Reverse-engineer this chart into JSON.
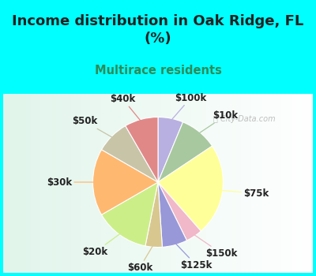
{
  "title": "Income distribution in Oak Ridge, FL\n(%)",
  "subtitle": "Multirace residents",
  "title_color": "#222222",
  "subtitle_color": "#2e8b57",
  "bg_color": "#00ffff",
  "chart_bg_left": "#e8f8f0",
  "chart_bg_right": "#f8ffff",
  "labels": [
    "$100k",
    "$10k",
    "$75k",
    "$150k",
    "$125k",
    "$60k",
    "$20k",
    "$30k",
    "$50k",
    "$40k"
  ],
  "values": [
    6,
    9,
    22,
    4,
    6,
    4,
    13,
    16,
    8,
    8
  ],
  "colors": [
    "#b8b0e0",
    "#a8c8a0",
    "#ffff99",
    "#f0b8c8",
    "#9898d8",
    "#d8c890",
    "#ccee88",
    "#ffb870",
    "#c8c4a8",
    "#e08888"
  ],
  "line_colors": [
    "#b8b0e0",
    "#a8c8a0",
    "#ffff99",
    "#f0b8c8",
    "#9898d8",
    "#d8c890",
    "#ccee88",
    "#ffb870",
    "#c8c4a8",
    "#e08888"
  ],
  "startangle": 90,
  "wedge_linewidth": 0.8,
  "wedge_linecolor": "#ffffff",
  "label_fontsize": 8.5,
  "watermark": "City-Data.com"
}
